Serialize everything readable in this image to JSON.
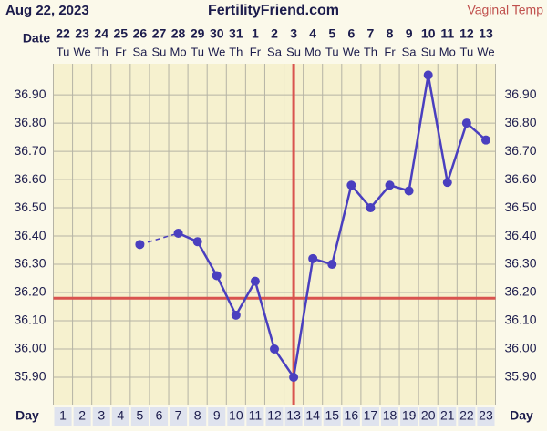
{
  "chart_data": {
    "type": "line",
    "title": "FertilityFriend.com",
    "date": "Aug 22, 2023",
    "temp_type": "Vaginal Temp",
    "date_label": "Date",
    "day_label": "Day",
    "dates": [
      "22",
      "23",
      "24",
      "25",
      "26",
      "27",
      "28",
      "29",
      "30",
      "31",
      "1",
      "2",
      "3",
      "4",
      "5",
      "6",
      "7",
      "8",
      "9",
      "10",
      "11",
      "12",
      "13"
    ],
    "weekdays": [
      "Tu",
      "We",
      "Th",
      "Fr",
      "Sa",
      "Su",
      "Mo",
      "Tu",
      "We",
      "Th",
      "Fr",
      "Sa",
      "Su",
      "Mo",
      "Tu",
      "We",
      "Th",
      "Fr",
      "Sa",
      "Su",
      "Mo",
      "Tu",
      "We"
    ],
    "x": [
      1,
      2,
      3,
      4,
      5,
      6,
      7,
      8,
      9,
      10,
      11,
      12,
      13,
      14,
      15,
      16,
      17,
      18,
      19,
      20,
      21,
      22,
      23
    ],
    "series": [
      {
        "name": "Temperature",
        "color": "#4a3fbf",
        "values": [
          null,
          null,
          null,
          null,
          36.37,
          null,
          36.41,
          36.38,
          36.26,
          36.12,
          36.24,
          36.0,
          35.9,
          36.32,
          36.3,
          36.58,
          36.5,
          36.58,
          36.56,
          36.97,
          36.59,
          36.8,
          36.74
        ]
      }
    ],
    "coverline": 36.18,
    "ovulation_day": 13,
    "line_color": "#d9534f",
    "ylim": [
      35.8,
      37.01
    ],
    "yticks": [
      {
        "value": 35.9,
        "label": "35.90"
      },
      {
        "value": 36.0,
        "label": "36.00"
      },
      {
        "value": 36.1,
        "label": "36.10"
      },
      {
        "value": 36.2,
        "label": "36.20"
      },
      {
        "value": 36.3,
        "label": "36.30"
      },
      {
        "value": 36.4,
        "label": "36.40"
      },
      {
        "value": 36.5,
        "label": "36.50"
      },
      {
        "value": 36.6,
        "label": "36.60"
      },
      {
        "value": 36.7,
        "label": "36.70"
      },
      {
        "value": 36.8,
        "label": "36.80"
      },
      {
        "value": 36.9,
        "label": "36.90"
      }
    ],
    "grid": true
  }
}
